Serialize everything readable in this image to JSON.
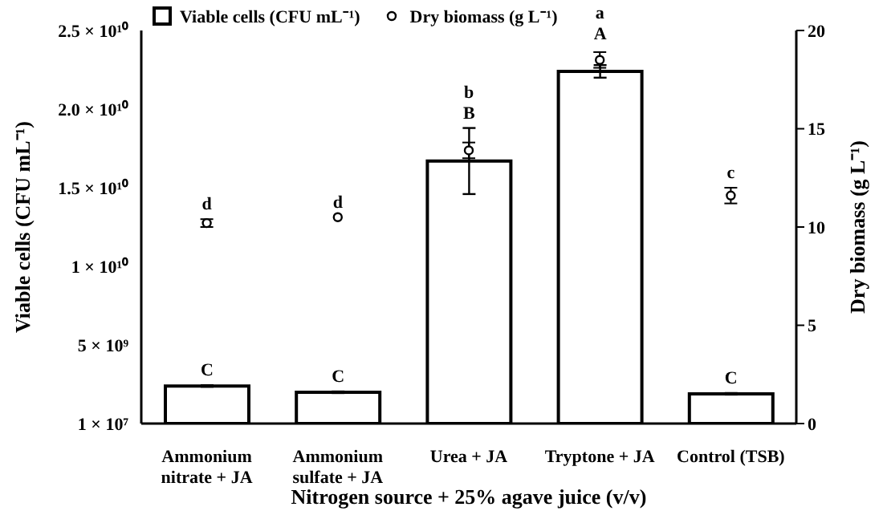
{
  "chart_data": {
    "type": "bar",
    "xlabel": "Nitrogen source + 25% agave juice (v/v)",
    "ylabel": "Viable cells  (CFU mL⁻¹)",
    "y2label": "Dry biomass  (g L⁻¹)",
    "categories": [
      "Ammonium nitrate + JA",
      "Ammonium sulfate  + JA",
      "Urea + JA",
      "Tryptone + JA",
      "Control (TSB)"
    ],
    "series": [
      {
        "name": "Viable cells (CFU mL⁻¹)",
        "color": "#ffffff",
        "values": [
          2400000000.0,
          2000000000.0,
          16700000000.0,
          22400000000.0,
          1900000000.0
        ],
        "errors": [
          50000000.0,
          50000000.0,
          2100000000.0,
          400000000.0,
          50000000.0
        ],
        "value_labels": [
          "C",
          "C",
          "B",
          "A",
          "C"
        ]
      },
      {
        "name": "Dry biomass (g L⁻¹)",
        "type": "scatter",
        "axis": "y2",
        "color": "#000000",
        "values": [
          10.2,
          10.5,
          13.9,
          18.5,
          11.6
        ],
        "errors": [
          0.2,
          null,
          0.4,
          0.4,
          0.4
        ],
        "value_labels": [
          "d",
          "d",
          "b",
          "a",
          "c"
        ]
      }
    ],
    "ylim": [
      10000000.0,
      25000000000.0
    ],
    "yticks": [
      {
        "value": 10000000.0,
        "label": "1 × 10⁷"
      },
      {
        "value": 5000000000.0,
        "label": "5 × 10⁹"
      },
      {
        "value": 10000000000.0,
        "label": "1 × 10¹⁰"
      },
      {
        "value": 15000000000.0,
        "label": "1.5 × 10¹⁰"
      },
      {
        "value": 20000000000.0,
        "label": "2.0 × 10¹⁰"
      },
      {
        "value": 25000000000.0,
        "label": "2.5 × 10¹⁰"
      }
    ],
    "y2lim": [
      0,
      20
    ],
    "y2ticks": [
      0,
      5,
      10,
      15,
      20
    ],
    "legend": "top",
    "marker": "circle"
  }
}
